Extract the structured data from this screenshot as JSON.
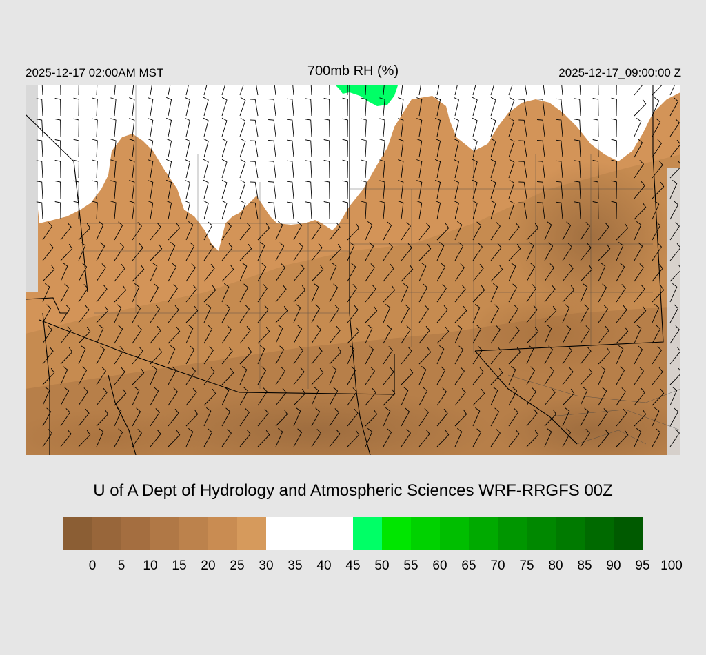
{
  "header": {
    "local_time": "2025-12-17 02:00AM MST",
    "title": "700mb RH (%)",
    "valid_time": "2025-12-17_09:00:00 Z"
  },
  "credit": "U of A Dept of Hydrology and Atmospheric Sciences WRF-RRGFS 00Z",
  "colorbar": {
    "labels": [
      "0",
      "5",
      "10",
      "15",
      "20",
      "25",
      "30",
      "35",
      "40",
      "45",
      "50",
      "55",
      "60",
      "65",
      "70",
      "75",
      "80",
      "85",
      "90",
      "95",
      "100"
    ],
    "colors": [
      "#8b5e34",
      "#98663a",
      "#a46e40",
      "#b07846",
      "#bc824c",
      "#c98c52",
      "#d69a5c",
      "#ffffff",
      "#ffffff",
      "#ffffff",
      "#00ff66",
      "#00e600",
      "#00d200",
      "#00be00",
      "#00aa00",
      "#009600",
      "#008800",
      "#007a00",
      "#006a00",
      "#005a00"
    ]
  },
  "map": {
    "field": "relative humidity",
    "dominant_colors": {
      "dry_dark": "#9a6a3d",
      "dry_mid": "#b47c48",
      "dry_light": "#d39458",
      "moist": "#ffffff",
      "very_moist": "#00ff66",
      "outside_domain": "#d9d9d9"
    }
  }
}
